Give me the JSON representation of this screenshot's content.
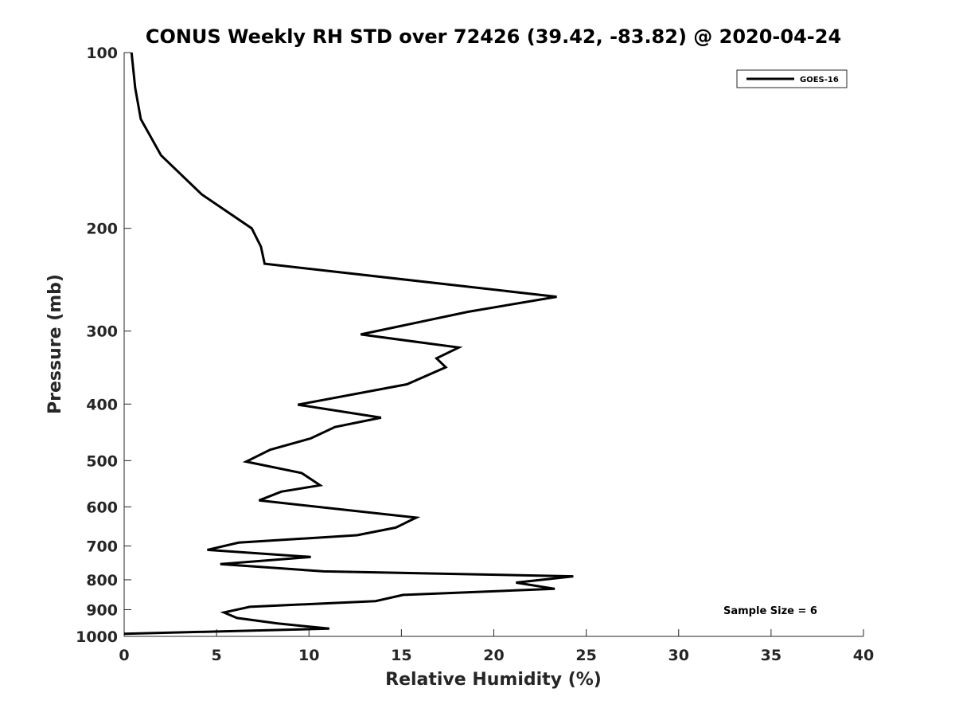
{
  "chart_data": {
    "type": "line",
    "title": "CONUS Weekly RH STD over 72426 (39.42, -83.82) @ 2020-04-24",
    "xlabel": "Relative Humidity (%)",
    "ylabel": "Pressure (mb)",
    "xlim": [
      0,
      40
    ],
    "ylim": [
      100,
      1000
    ],
    "y_scale": "log",
    "y_reversed": true,
    "x_ticks": [
      0,
      5,
      10,
      15,
      20,
      25,
      30,
      35,
      40
    ],
    "y_ticks": [
      100,
      200,
      300,
      400,
      500,
      600,
      700,
      800,
      900,
      1000
    ],
    "grid": false,
    "legend": {
      "position": "top-right",
      "entries": [
        "GOES-16"
      ]
    },
    "annotation": "Sample Size = 6",
    "series": [
      {
        "name": "GOES-16",
        "color": "#000000",
        "points": [
          [
            0.4,
            100
          ],
          [
            0.6,
            115
          ],
          [
            0.9,
            130
          ],
          [
            2.0,
            150
          ],
          [
            4.2,
            175
          ],
          [
            6.9,
            200
          ],
          [
            7.4,
            215
          ],
          [
            7.6,
            230
          ],
          [
            23.4,
            262
          ],
          [
            18.6,
            278
          ],
          [
            12.8,
            304
          ],
          [
            18.1,
            320
          ],
          [
            16.9,
            334
          ],
          [
            17.4,
            346
          ],
          [
            15.3,
            370
          ],
          [
            9.4,
            401
          ],
          [
            13.9,
            422
          ],
          [
            11.4,
            438
          ],
          [
            10.1,
            458
          ],
          [
            7.9,
            479
          ],
          [
            6.6,
            502
          ],
          [
            9.6,
            525
          ],
          [
            10.6,
            551
          ],
          [
            8.5,
            565
          ],
          [
            7.3,
            585
          ],
          [
            15.8,
            626
          ],
          [
            14.7,
            651
          ],
          [
            12.6,
            671
          ],
          [
            6.2,
            691
          ],
          [
            4.5,
            711
          ],
          [
            10.1,
            731
          ],
          [
            5.2,
            752
          ],
          [
            10.8,
            774
          ],
          [
            24.3,
            789
          ],
          [
            21.2,
            809
          ],
          [
            23.3,
            829
          ],
          [
            15.1,
            849
          ],
          [
            13.6,
            870
          ],
          [
            6.8,
            890
          ],
          [
            5.4,
            910
          ],
          [
            6.1,
            930
          ],
          [
            8.3,
            950
          ],
          [
            11.1,
            970
          ],
          [
            0.0,
            990
          ]
        ]
      }
    ]
  }
}
